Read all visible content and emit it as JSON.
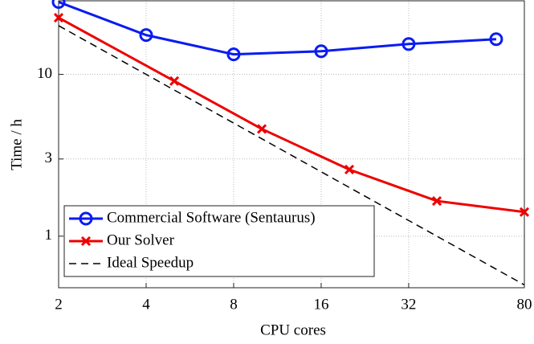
{
  "chart_data": {
    "type": "line",
    "xlabel": "CPU cores",
    "ylabel": "Time / h",
    "xlog": true,
    "ylog": true,
    "grid": true,
    "legend": "lower left",
    "xlim": [
      2,
      80
    ],
    "xticks": [
      2,
      4,
      8,
      16,
      32,
      80
    ],
    "ylim": [
      0.48,
      28.5
    ],
    "yticks": [
      1,
      3,
      10
    ],
    "series": [
      {
        "name": "Commercial Software (Sentaurus)",
        "color": "#0a1cf0",
        "marker": "o",
        "x": [
          2,
          4,
          8,
          16,
          32,
          64
        ],
        "values": [
          28,
          17.5,
          13.3,
          13.9,
          15.4,
          16.5
        ]
      },
      {
        "name": "Our Solver",
        "color": "#ee0000",
        "marker": "x",
        "x": [
          2,
          5,
          10,
          20,
          40,
          80
        ],
        "values": [
          22.4,
          9.1,
          4.6,
          2.58,
          1.65,
          1.41
        ]
      },
      {
        "name": "Ideal Speedup",
        "color": "#000000",
        "dash": true,
        "x": [
          2,
          80
        ],
        "values": [
          20,
          0.5
        ]
      }
    ]
  }
}
